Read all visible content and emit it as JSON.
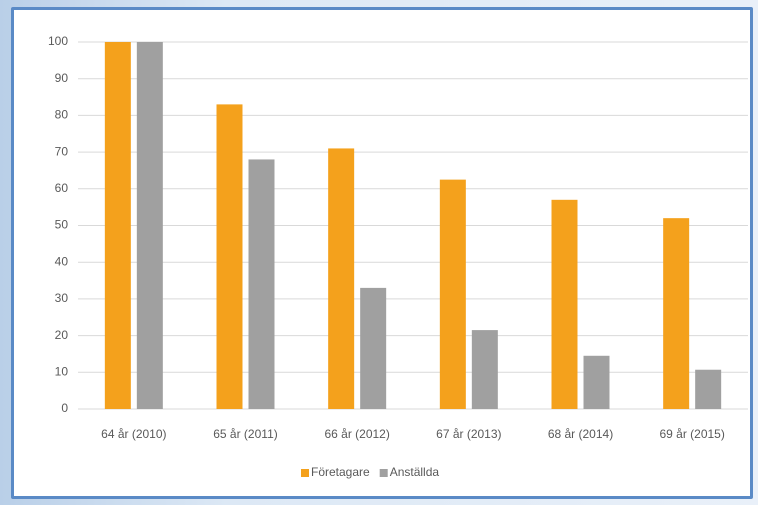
{
  "chart_data": {
    "type": "bar",
    "categories": [
      "64 år (2010)",
      "65 år (2011)",
      "66 år (2012)",
      "67 år (2013)",
      "68 år (2014)",
      "69 år (2015)"
    ],
    "series": [
      {
        "name": "Företagare",
        "color": "#f4a11c",
        "values": [
          100,
          83,
          71,
          62.5,
          57,
          52
        ]
      },
      {
        "name": "Anställda",
        "color": "#a0a0a0",
        "values": [
          100,
          68,
          33,
          21.5,
          14.5,
          10.7
        ]
      }
    ],
    "ylim": [
      0,
      100
    ],
    "yticks": [
      0,
      10,
      20,
      30,
      40,
      50,
      60,
      70,
      80,
      90,
      100
    ],
    "grid": true,
    "legend": "bottom"
  }
}
